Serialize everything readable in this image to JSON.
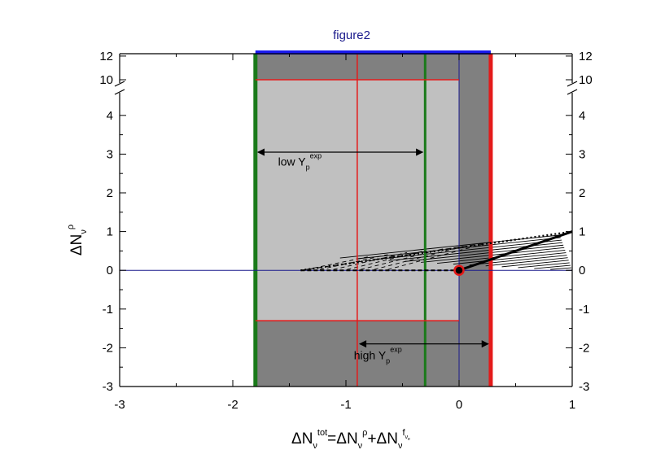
{
  "chart_data": {
    "type": "line",
    "title": "figure2",
    "xlabel": {
      "base": "ΔN",
      "sub1": "ν",
      "sup1": "tot",
      "eq": "=ΔN",
      "sub2": "ν",
      "sup2": "ρ",
      "plus": "+ΔN",
      "sub3": "ν",
      "sup3": "f",
      "sup3sub": "ν",
      "sup3subsub": "e"
    },
    "ylabel": {
      "base": "ΔN",
      "sub": "ν",
      "sup": "ρ"
    },
    "xlim": [
      -3,
      1
    ],
    "ylim": [
      -3,
      12
    ],
    "y_axis_break": {
      "lower_max": 4.5,
      "upper_min": 10,
      "upper_max": 12.2
    },
    "x_ticks": [
      -3,
      -2,
      -1,
      0,
      1
    ],
    "x_tick_labels": [
      "-3",
      "-2",
      "-1",
      "0",
      "1"
    ],
    "y_ticks": [
      -3,
      -2,
      -1,
      0,
      1,
      2,
      3,
      4,
      10,
      12
    ],
    "y_tick_labels": [
      "-3",
      "-2",
      "-1",
      "0",
      "1",
      "2",
      "3",
      "4",
      "10",
      "12"
    ],
    "regions": [
      {
        "name": "dark-gray-region",
        "x": [
          -1.8,
          0.28
        ],
        "y": [
          -3,
          12.3
        ],
        "color": "#808080"
      },
      {
        "name": "light-gray-region",
        "x": [
          -1.8,
          0.0
        ],
        "y": [
          -1.3,
          10.0
        ],
        "color": "#c0c0c0"
      }
    ],
    "vertical_lines": [
      {
        "name": "green-line-left",
        "x": -1.8,
        "color": "#1a7a1a",
        "width": 5
      },
      {
        "name": "green-line-right",
        "x": -0.3,
        "color": "#1a7a1a",
        "width": 3
      },
      {
        "name": "red-line-thin",
        "x": -0.9,
        "color": "#e41a1a",
        "width": 1.5
      },
      {
        "name": "red-line-thick",
        "x": 0.28,
        "color": "#e41a1a",
        "width": 5
      },
      {
        "name": "navy-line-zero",
        "x": 0.0,
        "color": "#1a1a8c",
        "width": 1
      }
    ],
    "horizontal_lines": [
      {
        "name": "red-hline-top",
        "y": 10.0,
        "x": [
          -1.8,
          0.0
        ],
        "color": "#e41a1a"
      },
      {
        "name": "red-hline-bottom",
        "y": -1.3,
        "x": [
          -1.8,
          0.0
        ],
        "color": "#e41a1a"
      },
      {
        "name": "navy-hline-zero",
        "y": 0.0,
        "x": [
          -3,
          1
        ],
        "color": "#1a1a8c"
      },
      {
        "name": "blue-top-bar",
        "y": 12.3,
        "x": [
          -1.8,
          0.28
        ],
        "color": "#1a1aee"
      }
    ],
    "arrows": [
      {
        "name": "low-yp-arrow",
        "x": [
          -1.8,
          -0.3
        ],
        "y": 3.05
      },
      {
        "name": "high-yp-arrow",
        "x": [
          -0.9,
          0.28
        ],
        "y": -1.9
      }
    ],
    "annotations": [
      {
        "name": "low-yp-label",
        "base": "low Y",
        "sub": "p",
        "sup": "exp",
        "x": -1.6,
        "y": 2.7
      },
      {
        "name": "high-yp-label",
        "base": "high Y",
        "sub": "p",
        "sup": "exp",
        "x": -0.93,
        "y": -2.3
      }
    ],
    "series": [
      {
        "name": "",
        "style": "dotted-thick",
        "x": [
          -1.4,
          1.0
        ],
        "y": [
          0.0,
          1.0
        ]
      },
      {
        "name": "",
        "style": "dashed",
        "x": [
          -1.4,
          0.28
        ],
        "y": [
          0.0,
          0.72
        ]
      },
      {
        "name": "",
        "style": "solid-thick",
        "x": [
          0.0,
          1.0
        ],
        "y": [
          0.0,
          1.0
        ]
      },
      {
        "name": "",
        "style": "dashed-baseline",
        "x": [
          -1.4,
          0.0
        ],
        "y": [
          0.0,
          0.0
        ]
      }
    ],
    "point": {
      "name": "origin-point",
      "x": 0.0,
      "y": 0.0,
      "color": "#e41a1a"
    }
  }
}
